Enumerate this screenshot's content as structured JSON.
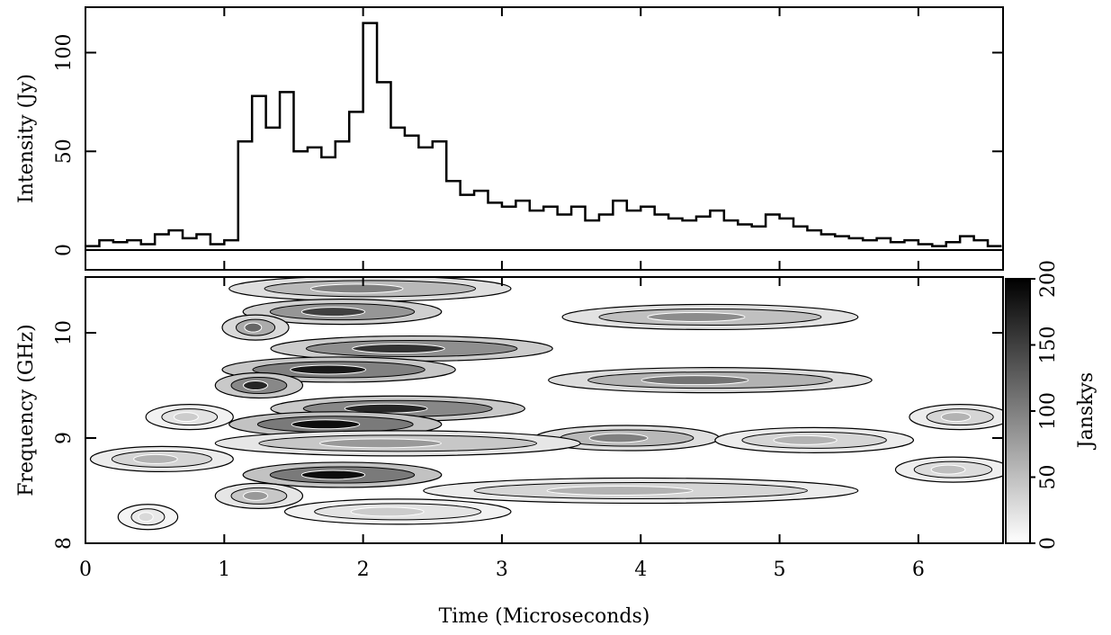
{
  "chart_data": [
    {
      "type": "step",
      "ylabel": "Intensity (Jy)",
      "xlim": [
        0,
        6.61
      ],
      "ylim": [
        -10,
        123
      ],
      "yticks": [
        0,
        50,
        100
      ],
      "color": "#000000",
      "x": [
        0.0,
        0.1,
        0.2,
        0.3,
        0.4,
        0.5,
        0.6,
        0.7,
        0.8,
        0.9,
        1.0,
        1.1,
        1.2,
        1.3,
        1.4,
        1.5,
        1.6,
        1.7,
        1.8,
        1.9,
        2.0,
        2.1,
        2.2,
        2.3,
        2.4,
        2.5,
        2.6,
        2.7,
        2.8,
        2.9,
        3.0,
        3.1,
        3.2,
        3.3,
        3.4,
        3.5,
        3.6,
        3.7,
        3.8,
        3.9,
        4.0,
        4.1,
        4.2,
        4.3,
        4.4,
        4.5,
        4.6,
        4.7,
        4.8,
        4.9,
        5.0,
        5.1,
        5.2,
        5.3,
        5.4,
        5.5,
        5.6,
        5.7,
        5.8,
        5.9,
        6.0,
        6.1,
        6.2,
        6.3,
        6.4,
        6.5
      ],
      "values": [
        2,
        5,
        4,
        5,
        3,
        8,
        10,
        6,
        8,
        3,
        5,
        55,
        78,
        62,
        80,
        50,
        52,
        47,
        55,
        70,
        115,
        85,
        62,
        58,
        52,
        55,
        35,
        28,
        30,
        24,
        22,
        25,
        20,
        22,
        18,
        22,
        15,
        18,
        25,
        20,
        22,
        18,
        16,
        15,
        17,
        20,
        15,
        13,
        12,
        18,
        16,
        12,
        10,
        8,
        7,
        6,
        5,
        6,
        4,
        5,
        3,
        2,
        4,
        7,
        5,
        2
      ]
    },
    {
      "type": "dynamic-spectrum",
      "xlabel": "Time (Microseconds)",
      "ylabel": "Frequency (GHz)",
      "xlim": [
        0,
        6.61
      ],
      "ylim": [
        8,
        10.53
      ],
      "xticks": [
        0,
        1,
        2,
        3,
        4,
        5,
        6
      ],
      "yticks": [
        8,
        9,
        10
      ],
      "colorbar": {
        "label": "Janskys",
        "lim": [
          0,
          200
        ],
        "ticks": [
          0,
          50,
          100,
          150,
          200
        ]
      },
      "bands": [
        {
          "freq": 10.42,
          "start": 1.1,
          "end": 3.0,
          "peak": 100
        },
        {
          "freq": 10.2,
          "start": 1.2,
          "end": 2.5,
          "peak": 150
        },
        {
          "freq": 10.05,
          "start": 1.05,
          "end": 1.4,
          "peak": 120
        },
        {
          "freq": 10.15,
          "start": 3.5,
          "end": 5.5,
          "peak": 90
        },
        {
          "freq": 9.85,
          "start": 1.4,
          "end": 3.3,
          "peak": 160
        },
        {
          "freq": 9.65,
          "start": 1.05,
          "end": 2.6,
          "peak": 180
        },
        {
          "freq": 9.5,
          "start": 1.0,
          "end": 1.5,
          "peak": 170
        },
        {
          "freq": 9.55,
          "start": 3.4,
          "end": 5.6,
          "peak": 110
        },
        {
          "freq": 9.28,
          "start": 1.4,
          "end": 3.1,
          "peak": 170
        },
        {
          "freq": 9.13,
          "start": 1.1,
          "end": 2.5,
          "peak": 190
        },
        {
          "freq": 9.2,
          "start": 0.5,
          "end": 1.0,
          "peak": 40
        },
        {
          "freq": 9.0,
          "start": 3.3,
          "end": 4.5,
          "peak": 100
        },
        {
          "freq": 8.98,
          "start": 4.6,
          "end": 5.9,
          "peak": 60
        },
        {
          "freq": 9.2,
          "start": 6.0,
          "end": 6.6,
          "peak": 60
        },
        {
          "freq": 8.95,
          "start": 1.0,
          "end": 3.5,
          "peak": 80
        },
        {
          "freq": 8.8,
          "start": 0.1,
          "end": 1.0,
          "peak": 60
        },
        {
          "freq": 8.65,
          "start": 1.2,
          "end": 2.5,
          "peak": 190
        },
        {
          "freq": 8.45,
          "start": 1.0,
          "end": 1.5,
          "peak": 80
        },
        {
          "freq": 8.5,
          "start": 2.5,
          "end": 5.5,
          "peak": 60
        },
        {
          "freq": 8.3,
          "start": 1.5,
          "end": 3.0,
          "peak": 40
        },
        {
          "freq": 8.7,
          "start": 5.9,
          "end": 6.6,
          "peak": 50
        },
        {
          "freq": 8.25,
          "start": 0.3,
          "end": 0.6,
          "peak": 30
        }
      ]
    }
  ]
}
